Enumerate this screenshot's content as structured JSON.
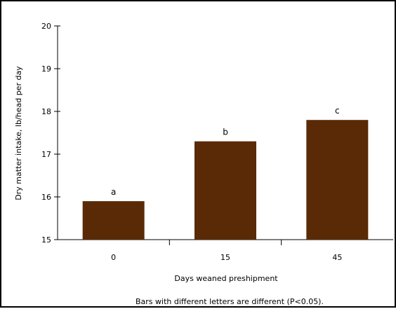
{
  "chart_data": {
    "type": "bar",
    "categories": [
      "0",
      "15",
      "45"
    ],
    "series": [
      {
        "values": [
          15.9,
          17.3,
          17.8
        ],
        "labels": [
          "a",
          "b",
          "c"
        ]
      }
    ],
    "xlabel": "Days weaned preshipment",
    "ylabel": "Dry matter intake, lb/head per day",
    "ylim": [
      15,
      20
    ],
    "yticks": [
      "15",
      "16",
      "17",
      "18",
      "19",
      "20"
    ],
    "footnote": "Bars with different letters are different (P<0.05).",
    "grid": false,
    "legend": "none",
    "colors": {
      "bar": "#5a2a06",
      "axis": "#000000",
      "background": "#ffffff"
    }
  }
}
